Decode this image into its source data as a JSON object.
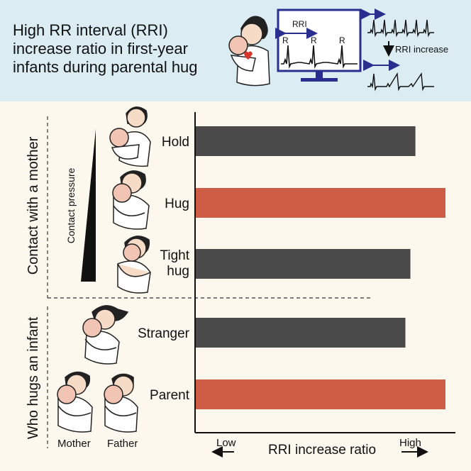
{
  "header": {
    "title_lines": [
      "High RR interval (RRI)",
      "increase ratio in first-year",
      "infants during parental hug"
    ],
    "monitor_label": "RRI",
    "r_peak_label": "R",
    "change_label": "RRI increase"
  },
  "sections": {
    "contact": "Contact with a mother",
    "who": "Who hugs an infant"
  },
  "pressure_label": "Contact pressure",
  "illustration_labels": {
    "mother": "Mother",
    "father": "Father"
  },
  "axis": {
    "label": "RRI increase ratio",
    "low": "Low",
    "high": "High"
  },
  "colors": {
    "header_bg": "#dbecf3",
    "panel_bg": "#fcf8ee",
    "bar_gray": "#4a4a4a",
    "bar_highlight": "#cd5e45",
    "monitor": "#2a2f8f",
    "arrow_blue": "#2a2f8f"
  },
  "chart_data": {
    "type": "bar",
    "orientation": "horizontal",
    "categories": [
      "Hold",
      "Hug",
      "Tight hug",
      "Stranger",
      "Parent"
    ],
    "values": [
      0.88,
      1.0,
      0.86,
      0.84,
      1.0
    ],
    "units": "relative (Low to High)",
    "highlight": [
      "Hug",
      "Parent"
    ],
    "xlim": [
      0,
      1
    ],
    "grid": false
  }
}
